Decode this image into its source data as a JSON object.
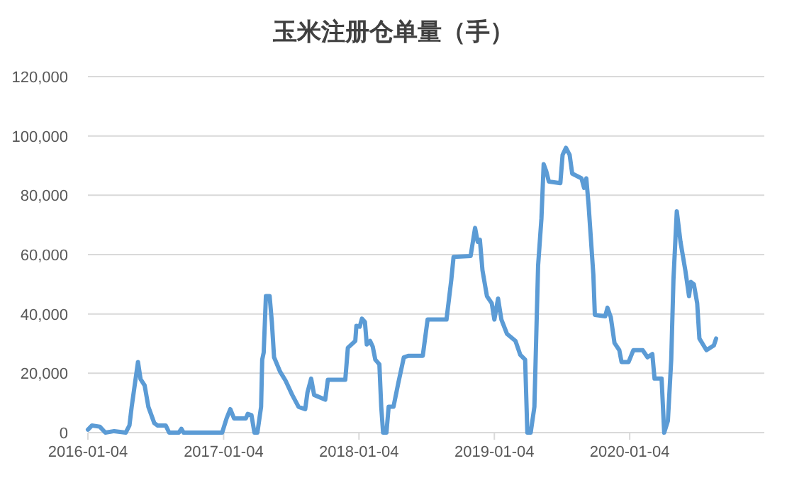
{
  "chart_data": {
    "type": "line",
    "title": "玉米注册仓单量（手）",
    "x": [
      "2016-01-04",
      "2016-01-15",
      "2016-02-05",
      "2016-02-20",
      "2016-03-15",
      "2016-04-15",
      "2016-04-25",
      "2016-05-01",
      "2016-05-10",
      "2016-05-18",
      "2016-05-25",
      "2016-06-05",
      "2016-06-15",
      "2016-07-01",
      "2016-07-10",
      "2016-08-01",
      "2016-08-10",
      "2016-09-05",
      "2016-09-12",
      "2016-09-18",
      "2016-12-31",
      "2017-01-12",
      "2017-01-22",
      "2017-02-01",
      "2017-03-05",
      "2017-03-10",
      "2017-03-20",
      "2017-03-28",
      "2017-04-05",
      "2017-04-15",
      "2017-04-18",
      "2017-04-22",
      "2017-04-28",
      "2017-05-08",
      "2017-05-14",
      "2017-05-20",
      "2017-06-05",
      "2017-06-20",
      "2017-07-08",
      "2017-07-25",
      "2017-08-12",
      "2017-08-18",
      "2017-08-28",
      "2017-09-05",
      "2017-10-05",
      "2017-10-12",
      "2017-11-28",
      "2017-12-05",
      "2017-12-25",
      "2017-12-28",
      "2018-01-06",
      "2018-01-12",
      "2018-01-20",
      "2018-01-25",
      "2018-02-03",
      "2018-02-10",
      "2018-02-17",
      "2018-02-28",
      "2018-03-05",
      "2018-03-10",
      "2018-03-19",
      "2018-03-25",
      "2018-04-07",
      "2018-04-20",
      "2018-05-05",
      "2018-05-18",
      "2018-06-25",
      "2018-07-08",
      "2018-08-28",
      "2018-09-10",
      "2018-09-16",
      "2018-11-01",
      "2018-11-13",
      "2018-11-20",
      "2018-11-26",
      "2018-12-03",
      "2018-12-15",
      "2018-12-28",
      "2019-01-04",
      "2019-01-14",
      "2019-01-23",
      "2019-02-07",
      "2019-03-02",
      "2019-03-15",
      "2019-03-28",
      "2019-04-03",
      "2019-04-12",
      "2019-04-22",
      "2019-05-02",
      "2019-05-11",
      "2019-05-17",
      "2019-05-24",
      "2019-05-31",
      "2019-07-01",
      "2019-07-07",
      "2019-07-16",
      "2019-07-26",
      "2019-08-02",
      "2019-08-27",
      "2019-09-03",
      "2019-09-09",
      "2019-09-15",
      "2019-09-28",
      "2019-10-02",
      "2019-10-30",
      "2019-11-05",
      "2019-11-14",
      "2019-11-24",
      "2019-12-07",
      "2019-12-13",
      "2020-01-01",
      "2020-01-14",
      "2020-02-08",
      "2020-02-21",
      "2020-03-05",
      "2020-03-11",
      "2020-03-30",
      "2020-04-06",
      "2020-04-16",
      "2020-04-25",
      "2020-05-01",
      "2020-05-10",
      "2020-05-20",
      "2020-06-02",
      "2020-06-12",
      "2020-06-17",
      "2020-06-25",
      "2020-07-04",
      "2020-07-10",
      "2020-07-29",
      "2020-08-18",
      "2020-08-24"
    ],
    "series": [
      {
        "color": "#5b9bd5",
        "values": [
          1000,
          2400,
          2000,
          0,
          500,
          0,
          2400,
          8700,
          16700,
          23800,
          18000,
          15900,
          8700,
          3200,
          2400,
          2400,
          0,
          0,
          1300,
          0,
          0,
          4800,
          7900,
          4800,
          4800,
          6300,
          5900,
          0,
          0,
          8700,
          24600,
          27000,
          46000,
          46000,
          37300,
          25400,
          20600,
          17500,
          12700,
          8700,
          7900,
          13500,
          18200,
          12700,
          11100,
          17800,
          17800,
          28600,
          30900,
          36000,
          35700,
          38400,
          37300,
          29700,
          30900,
          29000,
          24600,
          23000,
          8700,
          0,
          0,
          8700,
          8700,
          16700,
          25400,
          25900,
          25900,
          38100,
          38100,
          51600,
          59200,
          59500,
          69000,
          64300,
          65000,
          54700,
          46000,
          43600,
          38100,
          45200,
          38100,
          33300,
          30900,
          26200,
          24600,
          0,
          0,
          8700,
          56300,
          72200,
          90500,
          88100,
          84600,
          84100,
          93600,
          96000,
          93600,
          87300,
          85700,
          82500,
          85700,
          77000,
          53200,
          39700,
          39200,
          42100,
          38900,
          30200,
          27800,
          23800,
          23800,
          27800,
          27800,
          25400,
          26500,
          18200,
          18200,
          0,
          4000,
          24600,
          51600,
          74600,
          64300,
          54700,
          46000,
          50800,
          50000,
          43600,
          31700,
          27800,
          29400,
          31700
        ]
      }
    ],
    "xlim": [
      "2016-01-04",
      "2021-01-01"
    ],
    "xticks": [
      {
        "value": "2016-01-04",
        "label": "2016-01-04"
      },
      {
        "value": "2017-01-04",
        "label": "2017-01-04"
      },
      {
        "value": "2018-01-04",
        "label": "2018-01-04"
      },
      {
        "value": "2019-01-04",
        "label": "2019-01-04"
      },
      {
        "value": "2020-01-04",
        "label": "2020-01-04"
      }
    ],
    "ylim": [
      0,
      120000
    ],
    "yticks": [
      {
        "value": 0,
        "label": "0"
      },
      {
        "value": 20000,
        "label": "20,000"
      },
      {
        "value": 40000,
        "label": "40,000"
      },
      {
        "value": 60000,
        "label": "60,000"
      },
      {
        "value": 80000,
        "label": "80,000"
      },
      {
        "value": 100000,
        "label": "100,000"
      },
      {
        "value": 120000,
        "label": "120,000"
      }
    ],
    "grid": "y",
    "line_style": "solid",
    "marker": "none"
  }
}
